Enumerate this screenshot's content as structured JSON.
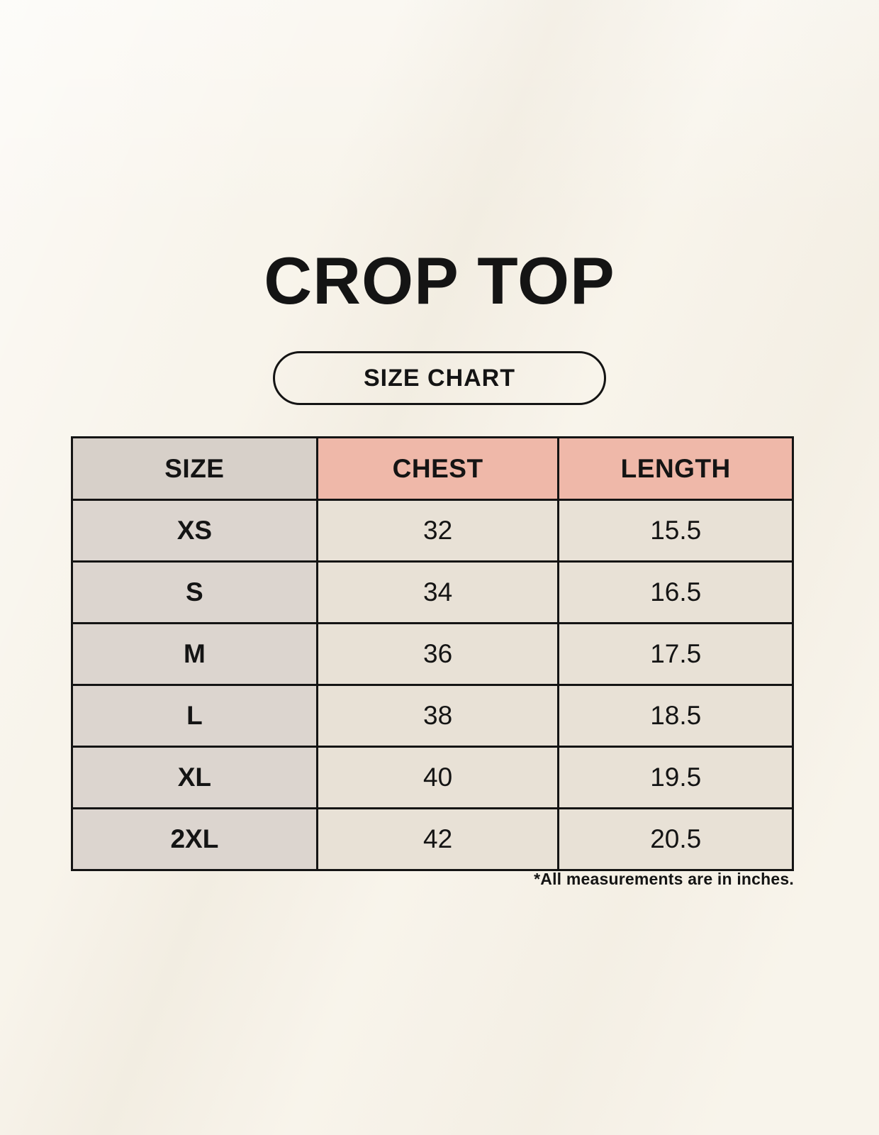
{
  "page": {
    "title": "CROP TOP",
    "button_label": "SIZE CHART",
    "footnote": "*All measurements are in inches."
  },
  "table": {
    "columns": [
      "SIZE",
      "CHEST",
      "LENGTH"
    ],
    "rows": [
      {
        "size": "XS",
        "chest": "32",
        "length": "15.5"
      },
      {
        "size": "S",
        "chest": "34",
        "length": "16.5"
      },
      {
        "size": "M",
        "chest": "36",
        "length": "17.5"
      },
      {
        "size": "L",
        "chest": "38",
        "length": "18.5"
      },
      {
        "size": "XL",
        "chest": "40",
        "length": "19.5"
      },
      {
        "size": "2XL",
        "chest": "42",
        "length": "20.5"
      }
    ]
  },
  "chart_data": {
    "type": "table",
    "title": "CROP TOP",
    "subtitle": "SIZE CHART",
    "columns": [
      "SIZE",
      "CHEST",
      "LENGTH"
    ],
    "rows": [
      [
        "XS",
        32,
        15.5
      ],
      [
        "S",
        34,
        16.5
      ],
      [
        "M",
        36,
        17.5
      ],
      [
        "L",
        38,
        18.5
      ],
      [
        "XL",
        40,
        19.5
      ],
      [
        "2XL",
        42,
        20.5
      ]
    ],
    "note": "*All measurements are in inches."
  },
  "colors": {
    "background": "#f8f4eb",
    "header_size_bg": "#d7d0c9",
    "header_measure_bg": "#efb8a9",
    "row_label_bg": "#dcd5cf",
    "row_value_bg": "#e8e1d6",
    "border": "#141414",
    "text": "#141414"
  }
}
